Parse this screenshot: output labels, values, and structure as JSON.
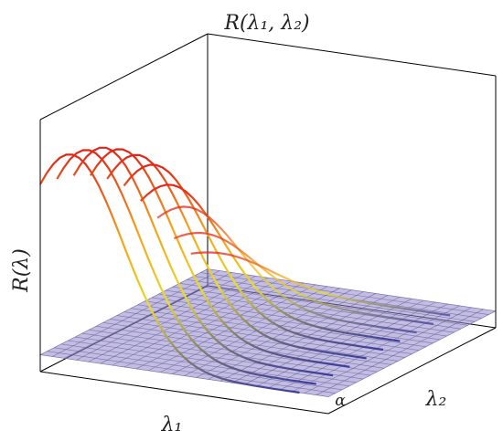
{
  "chart_data": {
    "type": "surface-3d",
    "title": "R(λ₁, λ₂)",
    "xlabel": "λ₁",
    "ylabel": "λ₂",
    "zlabel": "R(λ)",
    "plane_label": "α",
    "grid": true,
    "plane_color": "#8f86c9",
    "gradient_colors": [
      "#3d3d9c",
      "#e9dc2a",
      "#f4a21c",
      "#e2231a"
    ],
    "axis_range": [
      0,
      1
    ],
    "plane_z": 0,
    "curve_family_description_values": {
      "curves": [
        {
          "lambda2": 0.0,
          "peak": 1.0
        },
        {
          "lambda2": 0.1,
          "peak": 0.98
        },
        {
          "lambda2": 0.2,
          "peak": 0.95
        },
        {
          "lambda2": 0.3,
          "peak": 0.9
        },
        {
          "lambda2": 0.4,
          "peak": 0.83
        },
        {
          "lambda2": 0.5,
          "peak": 0.74
        },
        {
          "lambda2": 0.6,
          "peak": 0.6
        },
        {
          "lambda2": 0.7,
          "peak": 0.45
        },
        {
          "lambda2": 0.8,
          "peak": 0.28
        },
        {
          "lambda2": 0.9,
          "peak": 0.14
        }
      ]
    }
  }
}
